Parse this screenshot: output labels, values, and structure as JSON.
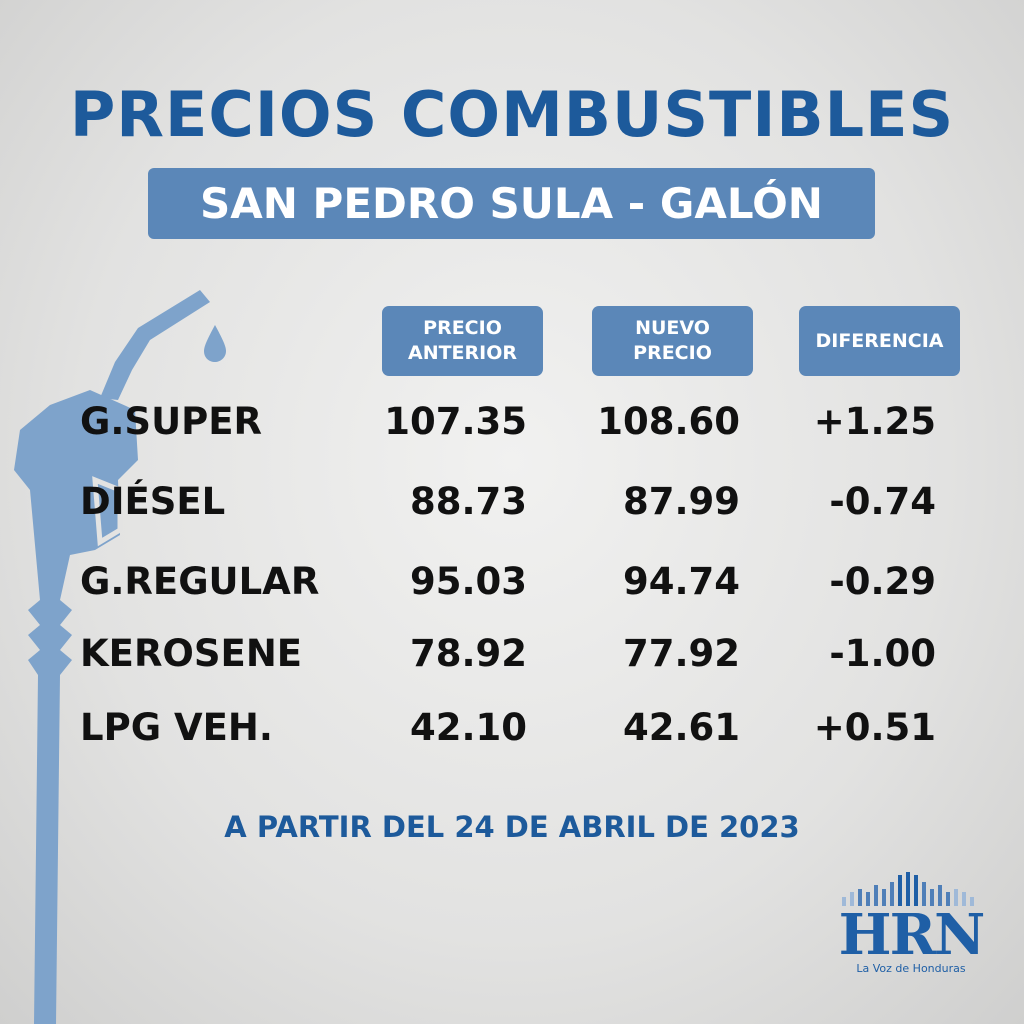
{
  "title": "PRECIOS COMBUSTIBLES",
  "subtitle": "SAN PEDRO SULA - GALÓN",
  "columns": [
    "PRECIO ANTERIOR",
    "NUEVO PRECIO",
    "DIFERENCIA"
  ],
  "column_lines": [
    [
      "PRECIO",
      "ANTERIOR"
    ],
    [
      "NUEVO",
      "PRECIO"
    ],
    [
      "DIFERENCIA"
    ]
  ],
  "rows": [
    {
      "fuel": "G.SUPER",
      "previous": "107.35",
      "new": "108.60",
      "diff": "+1.25"
    },
    {
      "fuel": "DIÉSEL",
      "previous": "88.73",
      "new": "87.99",
      "diff": "-0.74"
    },
    {
      "fuel": "G.REGULAR",
      "previous": "95.03",
      "new": "94.74",
      "diff": "-0.29"
    },
    {
      "fuel": "KEROSENE",
      "previous": "78.92",
      "new": "77.92",
      "diff": "-1.00"
    },
    {
      "fuel": "LPG VEH.",
      "previous": "42.10",
      "new": "42.61",
      "diff": "+0.51"
    }
  ],
  "effective_date": "A PARTIR DEL 24 DE ABRIL DE 2023",
  "logo": {
    "name": "HRN",
    "tagline": "La Voz de Honduras"
  },
  "colors": {
    "primary": "#1d5a9b",
    "header_bg": "#5b87b8",
    "pump": "#7aa0c8"
  },
  "icons": [
    "fuel-pump-nozzle-icon",
    "fuel-drop-icon"
  ]
}
